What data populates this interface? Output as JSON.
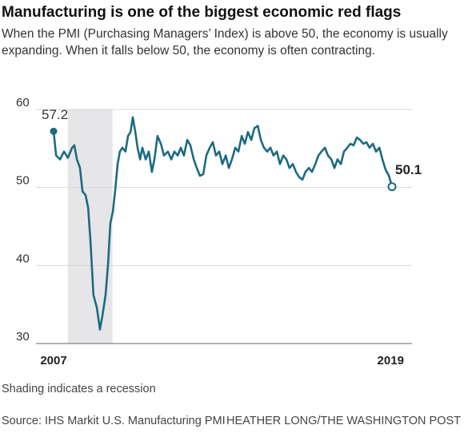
{
  "chart_data": {
    "type": "line",
    "title": "Manufacturing is one of the biggest economic red flags",
    "subtitle": "When the PMI (Purchasing Managers’ Index) is above 50, the economy is usually expanding. When it falls below 50, the economy is often contracting.",
    "note": "Shading indicates a recession",
    "source": "Source: IHS Markit U.S. Manufacturing PMI",
    "credit": "HEATHER LONG/THE WASHINGTON POST",
    "recession": [
      2007.5,
      2009.1
    ],
    "recession_color": "#e6e6e8",
    "x": [
      2007.0,
      2007.09,
      2007.23,
      2007.37,
      2007.51,
      2007.66,
      2007.74,
      2007.83,
      2007.94,
      2008.03,
      2008.14,
      2008.23,
      2008.31,
      2008.42,
      2008.54,
      2008.65,
      2008.74,
      2008.85,
      2008.94,
      2009.02,
      2009.11,
      2009.19,
      2009.28,
      2009.36,
      2009.45,
      2009.56,
      2009.65,
      2009.74,
      2009.82,
      2009.91,
      2009.99,
      2010.08,
      2010.16,
      2010.28,
      2010.39,
      2010.5,
      2010.59,
      2010.7,
      2010.82,
      2010.93,
      2011.07,
      2011.19,
      2011.3,
      2011.42,
      2011.53,
      2011.64,
      2011.76,
      2011.87,
      2011.99,
      2012.1,
      2012.21,
      2012.33,
      2012.44,
      2012.56,
      2012.67,
      2012.78,
      2012.9,
      2013.01,
      2013.13,
      2013.24,
      2013.35,
      2013.47,
      2013.58,
      2013.7,
      2013.81,
      2013.92,
      2014.04,
      2014.15,
      2014.27,
      2014.38,
      2014.49,
      2014.61,
      2014.72,
      2014.83,
      2014.95,
      2015.06,
      2015.18,
      2015.29,
      2015.4,
      2015.52,
      2015.63,
      2015.75,
      2015.86,
      2015.97,
      2016.09,
      2016.2,
      2016.32,
      2016.43,
      2016.54,
      2016.66,
      2016.77,
      2016.89,
      2017.0,
      2017.11,
      2017.23,
      2017.34,
      2017.46,
      2017.57,
      2017.68,
      2017.8,
      2017.91,
      2018.03,
      2018.14,
      2018.25,
      2018.37,
      2018.48,
      2018.6,
      2018.71,
      2018.82,
      2018.94,
      2019.05
    ],
    "series": [
      {
        "name": "PMI",
        "color": "#1d6b82",
        "values": [
          57.2,
          54.1,
          53.6,
          54.6,
          53.8,
          55.1,
          55.4,
          53.6,
          52.5,
          49.5,
          49.0,
          47.4,
          43.3,
          36.2,
          34.6,
          31.8,
          33.6,
          36.2,
          40.2,
          45.4,
          46.9,
          49.5,
          53.0,
          54.6,
          55.1,
          54.6,
          56.6,
          57.1,
          59.0,
          57.1,
          55.1,
          53.6,
          55.1,
          53.6,
          54.6,
          52.0,
          53.6,
          56.6,
          55.6,
          54.1,
          54.6,
          53.6,
          54.6,
          54.1,
          55.1,
          54.1,
          56.1,
          55.4,
          53.6,
          52.5,
          51.5,
          51.7,
          54.1,
          55.1,
          55.8,
          54.1,
          54.6,
          53.0,
          54.1,
          52.5,
          53.6,
          55.1,
          54.6,
          56.6,
          55.6,
          57.1,
          56.1,
          57.6,
          57.9,
          56.1,
          55.1,
          54.6,
          55.1,
          54.1,
          54.6,
          53.0,
          54.1,
          53.6,
          52.5,
          53.0,
          52.0,
          51.3,
          51.0,
          52.0,
          52.5,
          52.0,
          53.0,
          54.1,
          54.6,
          55.1,
          54.1,
          53.6,
          52.5,
          53.6,
          53.0,
          54.6,
          55.1,
          55.6,
          55.4,
          56.4,
          56.1,
          55.6,
          55.8,
          55.1,
          55.6,
          54.6,
          55.1,
          53.6,
          52.3,
          51.5,
          50.1
        ]
      }
    ],
    "xlim": [
      2007,
      2019.05
    ],
    "xticks": [
      2007,
      2019
    ],
    "ylim": [
      30,
      60
    ],
    "yticks": [
      60,
      50,
      40,
      30
    ],
    "grid": true
  }
}
